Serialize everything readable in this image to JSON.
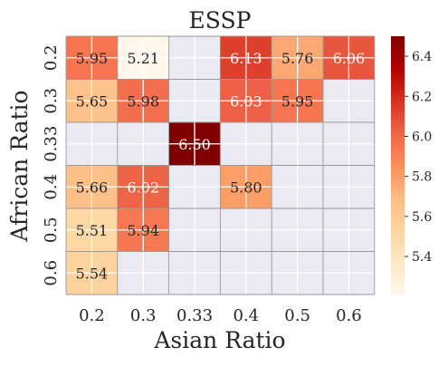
{
  "chart_data": {
    "type": "heatmap",
    "title": "ESSP",
    "xlabel": "Asian Ratio",
    "ylabel": "African Ratio",
    "x_categories": [
      "0.2",
      "0.3",
      "0.33",
      "0.4",
      "0.5",
      "0.6"
    ],
    "y_categories": [
      "0.2",
      "0.3",
      "0.33",
      "0.4",
      "0.5",
      "0.6"
    ],
    "values": [
      [
        5.95,
        5.21,
        null,
        6.13,
        5.76,
        6.06
      ],
      [
        5.65,
        5.98,
        null,
        6.03,
        5.95,
        null
      ],
      [
        null,
        null,
        6.5,
        null,
        null,
        null
      ],
      [
        5.66,
        6.02,
        null,
        5.8,
        null,
        null
      ],
      [
        5.51,
        5.94,
        null,
        null,
        null,
        null
      ],
      [
        5.54,
        null,
        null,
        null,
        null,
        null
      ]
    ],
    "value_labels": [
      [
        "5.95",
        "5.21",
        "",
        "6.13",
        "5.76",
        "6.06"
      ],
      [
        "5.65",
        "5.98",
        "",
        "6.03",
        "5.95",
        ""
      ],
      [
        "",
        "",
        "6.50",
        "",
        "",
        ""
      ],
      [
        "5.66",
        "6.02",
        "",
        "5.80",
        "",
        ""
      ],
      [
        "5.51",
        "5.94",
        "",
        "",
        "",
        ""
      ],
      [
        "5.54",
        "",
        "",
        "",
        "",
        ""
      ]
    ],
    "colorbar": {
      "colormap": "OrRd",
      "range": [
        5.21,
        6.5
      ],
      "ticks": [
        "5.4",
        "5.6",
        "5.8",
        "6.0",
        "6.2",
        "6.4"
      ],
      "tick_values": [
        5.4,
        5.6,
        5.8,
        6.0,
        6.2,
        6.4
      ]
    },
    "missing_color": "#eaeaf2",
    "grid": true
  }
}
